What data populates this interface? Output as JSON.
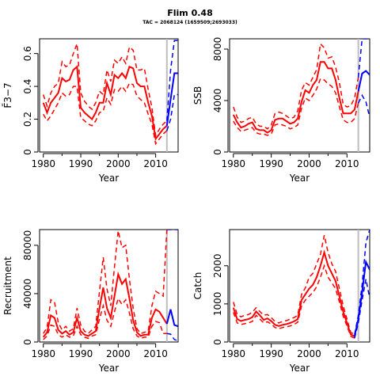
{
  "figure": {
    "title": "Flim 0.48",
    "subtitle": "TAC = 2068124 (1659509;2693033)"
  },
  "colors": {
    "history": "#ff0000",
    "projection": "#0000ff",
    "marker": "#bebebe",
    "axis": "#000000"
  },
  "chart_data": [
    {
      "type": "line",
      "ylabel": "F̄3−7",
      "xlabel": "Year",
      "x_ticks": [
        1980,
        1990,
        2000,
        2010
      ],
      "y_ticks": [
        0.0,
        0.2,
        0.4,
        0.6
      ],
      "xlim": [
        1979,
        2016
      ],
      "ylim": [
        0.0,
        0.69
      ],
      "vline": 2013,
      "series": [
        {
          "role": "history",
          "x": [
            1980,
            1981,
            1982,
            1983,
            1984,
            1985,
            1986,
            1987,
            1988,
            1989,
            1990,
            1991,
            1992,
            1993,
            1994,
            1995,
            1996,
            1997,
            1998,
            1999,
            2000,
            2001,
            2002,
            2003,
            2004,
            2005,
            2006,
            2007,
            2008,
            2009,
            2010,
            2011,
            2012,
            2013
          ],
          "y": [
            0.3,
            0.24,
            0.3,
            0.33,
            0.36,
            0.45,
            0.43,
            0.44,
            0.5,
            0.52,
            0.27,
            0.24,
            0.22,
            0.2,
            0.24,
            0.3,
            0.3,
            0.42,
            0.35,
            0.47,
            0.45,
            0.48,
            0.45,
            0.52,
            0.51,
            0.42,
            0.4,
            0.4,
            0.3,
            0.22,
            0.08,
            0.11,
            0.14,
            0.16
          ],
          "upper": [
            0.35,
            0.28,
            0.36,
            0.4,
            0.42,
            0.55,
            0.52,
            0.53,
            0.6,
            0.66,
            0.36,
            0.31,
            0.28,
            0.26,
            0.3,
            0.37,
            0.35,
            0.5,
            0.43,
            0.56,
            0.54,
            0.58,
            0.54,
            0.64,
            0.62,
            0.5,
            0.5,
            0.51,
            0.38,
            0.27,
            0.1,
            0.14,
            0.17,
            0.19
          ],
          "lower": [
            0.23,
            0.19,
            0.22,
            0.26,
            0.3,
            0.36,
            0.34,
            0.35,
            0.4,
            0.4,
            0.21,
            0.19,
            0.17,
            0.16,
            0.19,
            0.24,
            0.25,
            0.33,
            0.29,
            0.38,
            0.37,
            0.4,
            0.37,
            0.42,
            0.41,
            0.34,
            0.32,
            0.3,
            0.23,
            0.17,
            0.05,
            0.08,
            0.11,
            0.13
          ]
        },
        {
          "role": "projection",
          "x": [
            2013,
            2014,
            2015,
            2016
          ],
          "y": [
            0.16,
            0.32,
            0.48,
            0.48
          ],
          "upper": [
            0.19,
            0.5,
            0.68,
            0.68
          ],
          "lower": [
            0.13,
            0.2,
            0.35,
            0.35
          ]
        }
      ]
    },
    {
      "type": "line",
      "ylabel": "SSB",
      "xlabel": "Year",
      "x_ticks": [
        1980,
        1990,
        2000,
        2010
      ],
      "y_ticks": [
        0,
        4000,
        8000
      ],
      "xlim": [
        1979,
        2016
      ],
      "ylim": [
        0,
        8800
      ],
      "vline": 2013,
      "series": [
        {
          "role": "history",
          "x": [
            1980,
            1981,
            1982,
            1983,
            1984,
            1985,
            1986,
            1987,
            1988,
            1989,
            1990,
            1991,
            1992,
            1993,
            1994,
            1995,
            1996,
            1997,
            1998,
            1999,
            2000,
            2001,
            2002,
            2003,
            2004,
            2005,
            2006,
            2007,
            2008,
            2009,
            2010,
            2011,
            2012,
            2013
          ],
          "y": [
            2900,
            2300,
            1900,
            2000,
            2200,
            2300,
            1800,
            1700,
            1700,
            1500,
            1700,
            2500,
            2600,
            2600,
            2400,
            2200,
            2300,
            2600,
            3900,
            4800,
            4600,
            5200,
            5600,
            7000,
            7000,
            6500,
            6500,
            5600,
            4200,
            3000,
            3000,
            3000,
            3300,
            4700
          ],
          "upper": [
            3500,
            2700,
            2300,
            2400,
            2600,
            2700,
            2200,
            2000,
            2000,
            1800,
            2100,
            3000,
            3100,
            3000,
            2800,
            2600,
            2700,
            3200,
            4800,
            5400,
            5200,
            5800,
            6400,
            8400,
            8100,
            7300,
            7400,
            6600,
            5400,
            3700,
            3500,
            3600,
            4200,
            5800
          ],
          "lower": [
            2400,
            1900,
            1600,
            1700,
            1800,
            1900,
            1500,
            1400,
            1400,
            1300,
            1400,
            2100,
            2200,
            2100,
            2000,
            1800,
            1900,
            2100,
            3400,
            4200,
            4000,
            4400,
            4900,
            5700,
            5600,
            5300,
            5100,
            4600,
            3500,
            2500,
            2300,
            2300,
            2600,
            3800
          ]
        },
        {
          "role": "projection",
          "x": [
            2013,
            2014,
            2015,
            2016
          ],
          "y": [
            4700,
            6100,
            6300,
            6000
          ],
          "upper": [
            5800,
            8800,
            8800,
            8800
          ],
          "lower": [
            3800,
            4400,
            3900,
            2700
          ]
        }
      ]
    },
    {
      "type": "line",
      "ylabel": "Recruitment",
      "xlabel": "Year",
      "x_ticks": [
        1980,
        1990,
        2000,
        2010
      ],
      "y_ticks": [
        0,
        40000,
        80000
      ],
      "xlim": [
        1979,
        2016
      ],
      "ylim": [
        0,
        93000
      ],
      "vline": 2013,
      "series": [
        {
          "role": "history",
          "x": [
            1980,
            1981,
            1982,
            1983,
            1984,
            1985,
            1986,
            1987,
            1988,
            1989,
            1990,
            1991,
            1992,
            1993,
            1994,
            1995,
            1996,
            1997,
            1998,
            1999,
            2000,
            2001,
            2002,
            2003,
            2004,
            2005,
            2006,
            2007,
            2008,
            2009,
            2010,
            2011,
            2012,
            2013
          ],
          "y": [
            4000,
            8000,
            22000,
            20000,
            10000,
            7000,
            9000,
            6000,
            8000,
            20000,
            9000,
            6000,
            5000,
            7000,
            9000,
            28000,
            45000,
            28000,
            20000,
            38000,
            56000,
            48000,
            52000,
            36000,
            18000,
            8000,
            5000,
            6000,
            6000,
            20000,
            27000,
            25000,
            20000,
            15000
          ],
          "upper": [
            7000,
            12000,
            35000,
            33000,
            16000,
            10000,
            13000,
            9000,
            11000,
            28000,
            14000,
            9000,
            7000,
            10000,
            13000,
            42000,
            70000,
            44000,
            30000,
            62000,
            92000,
            78000,
            80000,
            52000,
            28000,
            11000,
            7000,
            8000,
            9000,
            30000,
            42000,
            40000,
            38000,
            93000
          ],
          "lower": [
            2000,
            5000,
            14000,
            13000,
            6000,
            4000,
            6000,
            4000,
            5000,
            13000,
            6000,
            4000,
            3000,
            5000,
            6000,
            19000,
            30000,
            18000,
            13000,
            25000,
            36000,
            31000,
            35000,
            24000,
            11000,
            5000,
            3000,
            4000,
            4000,
            13000,
            17000,
            16000,
            7000,
            7000
          ]
        },
        {
          "role": "projection",
          "x": [
            2013,
            2014,
            2015,
            2016
          ],
          "y": [
            15000,
            27000,
            14000,
            13000
          ],
          "upper": [
            93000,
            93000,
            93000,
            93000
          ],
          "lower": [
            7000,
            6500,
            2000,
            1000
          ]
        }
      ]
    },
    {
      "type": "line",
      "ylabel": "Catch",
      "xlabel": "Year",
      "x_ticks": [
        1980,
        1990,
        2000,
        2010
      ],
      "y_ticks": [
        0,
        1000,
        2000
      ],
      "xlim": [
        1979,
        2016
      ],
      "ylim": [
        0,
        2950
      ],
      "vline": 2013,
      "series": [
        {
          "role": "history",
          "x": [
            1980,
            1981,
            1982,
            1983,
            1984,
            1985,
            1986,
            1987,
            1988,
            1989,
            1990,
            1991,
            1992,
            1993,
            1994,
            1995,
            1996,
            1997,
            1998,
            1999,
            2000,
            2001,
            2002,
            2003,
            2004,
            2005,
            2006,
            2007,
            2008,
            2009,
            2010,
            2011,
            2012
          ],
          "y": [
            900,
            600,
            550,
            580,
            600,
            650,
            800,
            700,
            580,
            620,
            550,
            450,
            420,
            450,
            470,
            500,
            540,
            600,
            1100,
            1250,
            1400,
            1500,
            1700,
            2000,
            2350,
            2000,
            1800,
            1600,
            1200,
            800,
            500,
            200,
            150
          ],
          "upper": [
            1050,
            720,
            660,
            700,
            720,
            780,
            900,
            800,
            700,
            720,
            640,
            540,
            500,
            540,
            560,
            600,
            640,
            700,
            1250,
            1420,
            1700,
            1800,
            2050,
            2300,
            2800,
            2350,
            2050,
            1850,
            1400,
            950,
            600,
            250,
            200
          ],
          "lower": [
            780,
            500,
            460,
            480,
            500,
            540,
            700,
            600,
            500,
            530,
            470,
            380,
            350,
            380,
            400,
            420,
            460,
            520,
            950,
            1100,
            1200,
            1300,
            1450,
            1700,
            2000,
            1700,
            1550,
            1400,
            1050,
            680,
            420,
            150,
            100
          ]
        },
        {
          "role": "projection",
          "x": [
            2012,
            2013,
            2014,
            2015,
            2016
          ],
          "y": [
            150,
            600,
            1300,
            2100,
            1900
          ],
          "upper": [
            200,
            700,
            1500,
            2600,
            2950
          ],
          "lower": [
            100,
            500,
            1100,
            1650,
            1150
          ]
        }
      ]
    }
  ]
}
